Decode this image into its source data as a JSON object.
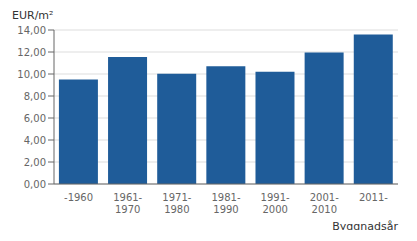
{
  "chart_data": {
    "type": "bar",
    "categories": [
      "-1960",
      "1961-\n1970",
      "1971-\n1980",
      "1981-\n1990",
      "1991-\n2000",
      "2001-\n2010",
      "2011-"
    ],
    "values": [
      9.5,
      11.55,
      10.02,
      10.7,
      10.2,
      11.95,
      13.6
    ],
    "color": "#1f5c99",
    "ylabel": "EUR/m²",
    "xlabel": "Byggnadsår",
    "ylim": [
      0,
      14.0
    ],
    "yticks": [
      {
        "value": 0.0,
        "label": "0,00"
      },
      {
        "value": 2.0,
        "label": "2,00"
      },
      {
        "value": 4.0,
        "label": "4,00"
      },
      {
        "value": 6.0,
        "label": "6,00"
      },
      {
        "value": 8.0,
        "label": "8,00"
      },
      {
        "value": 10.0,
        "label": "10,00"
      },
      {
        "value": 12.0,
        "label": "12,00"
      },
      {
        "value": 14.0,
        "label": "14,00"
      }
    ],
    "grid": true
  }
}
